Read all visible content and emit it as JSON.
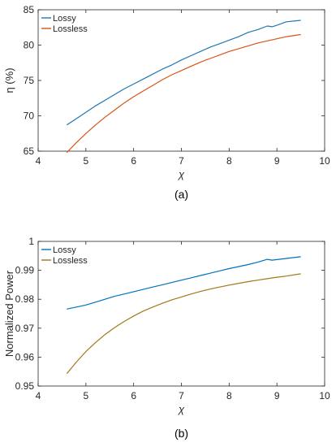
{
  "chart_data": [
    {
      "type": "line",
      "panel_label": "(a)",
      "xlabel": "χ",
      "ylabel": "η (%)",
      "xlim": [
        4,
        10
      ],
      "ylim": [
        65,
        85
      ],
      "xticks": [
        4,
        5,
        6,
        7,
        8,
        9,
        10
      ],
      "yticks": [
        65,
        70,
        75,
        80,
        85
      ],
      "grid": false,
      "legend": "top-left",
      "series": [
        {
          "name": "Lossy",
          "color": "#1f77b4",
          "x": [
            4.6,
            4.8,
            5.0,
            5.2,
            5.4,
            5.6,
            5.8,
            6.0,
            6.2,
            6.4,
            6.6,
            6.8,
            7.0,
            7.2,
            7.4,
            7.6,
            7.8,
            8.0,
            8.2,
            8.4,
            8.6,
            8.8,
            8.9,
            9.0,
            9.2,
            9.5
          ],
          "y": [
            68.7,
            69.6,
            70.5,
            71.4,
            72.2,
            73.0,
            73.8,
            74.5,
            75.2,
            75.9,
            76.6,
            77.2,
            77.9,
            78.5,
            79.1,
            79.7,
            80.2,
            80.7,
            81.2,
            81.8,
            82.2,
            82.7,
            82.6,
            82.8,
            83.3,
            83.5
          ]
        },
        {
          "name": "Lossless",
          "color": "#d95319",
          "x": [
            4.6,
            4.8,
            5.0,
            5.2,
            5.4,
            5.6,
            5.8,
            6.0,
            6.2,
            6.4,
            6.6,
            6.8,
            7.0,
            7.2,
            7.4,
            7.6,
            7.8,
            8.0,
            8.2,
            8.4,
            8.6,
            8.8,
            9.0,
            9.2,
            9.5
          ],
          "y": [
            64.8,
            66.2,
            67.5,
            68.7,
            69.8,
            70.8,
            71.8,
            72.7,
            73.5,
            74.3,
            75.1,
            75.8,
            76.4,
            77.0,
            77.6,
            78.1,
            78.6,
            79.1,
            79.5,
            79.9,
            80.3,
            80.6,
            80.9,
            81.2,
            81.5
          ]
        }
      ]
    },
    {
      "type": "line",
      "panel_label": "(b)",
      "xlabel": "χ",
      "ylabel": "Normalized Power",
      "xlim": [
        4,
        10
      ],
      "ylim": [
        0.95,
        1.0
      ],
      "xticks": [
        4,
        5,
        6,
        7,
        8,
        9,
        10
      ],
      "yticks": [
        0.95,
        0.96,
        0.97,
        0.98,
        0.99,
        1.0
      ],
      "ytick_labels": [
        "0.95",
        "0.96",
        "0.97",
        "0.98",
        "0.99",
        "1"
      ],
      "grid": false,
      "legend": "top-left",
      "series": [
        {
          "name": "Lossy",
          "color": "#0072bd",
          "x": [
            4.6,
            4.8,
            5.0,
            5.2,
            5.4,
            5.6,
            5.8,
            6.0,
            6.2,
            6.4,
            6.6,
            6.8,
            7.0,
            7.2,
            7.4,
            7.6,
            7.8,
            8.0,
            8.2,
            8.4,
            8.6,
            8.8,
            8.9,
            9.0,
            9.2,
            9.5
          ],
          "y": [
            0.9766,
            0.9773,
            0.978,
            0.979,
            0.98,
            0.981,
            0.9818,
            0.9826,
            0.9834,
            0.9842,
            0.985,
            0.9858,
            0.9866,
            0.9874,
            0.9882,
            0.989,
            0.9898,
            0.9906,
            0.9913,
            0.992,
            0.9928,
            0.9938,
            0.9935,
            0.9937,
            0.9941,
            0.9947
          ]
        },
        {
          "name": "Lossless",
          "color": "#a3781b",
          "x": [
            4.6,
            4.8,
            5.0,
            5.2,
            5.4,
            5.6,
            5.8,
            6.0,
            6.2,
            6.4,
            6.6,
            6.8,
            7.0,
            7.2,
            7.4,
            7.6,
            7.8,
            8.0,
            8.2,
            8.4,
            8.6,
            8.8,
            9.0,
            9.2,
            9.5
          ],
          "y": [
            0.9543,
            0.9583,
            0.9619,
            0.965,
            0.9678,
            0.9702,
            0.9723,
            0.9742,
            0.9759,
            0.9773,
            0.9786,
            0.9798,
            0.9808,
            0.9818,
            0.9827,
            0.9835,
            0.9842,
            0.9849,
            0.9855,
            0.9861,
            0.9866,
            0.9871,
            0.9876,
            0.988,
            0.9888
          ]
        }
      ]
    }
  ]
}
